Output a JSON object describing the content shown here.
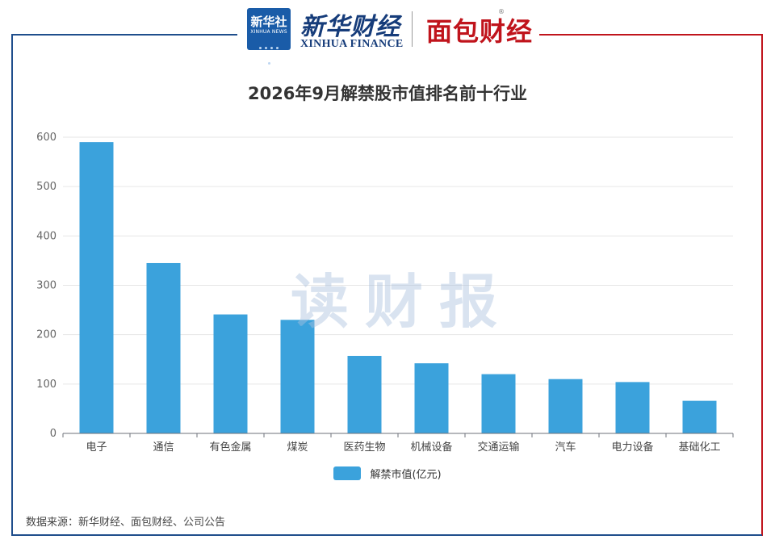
{
  "header": {
    "xinhua_badge_cn": "新华社",
    "xinhua_badge_en": "XINHUA NEWS",
    "xinhua_finance_cn": "新华财经",
    "xinhua_finance_en": "XINHUA FINANCE",
    "mianbao_logo": "面包财经",
    "registered_mark": "®"
  },
  "watermark": "读财报",
  "source_note": "数据来源：新华财经、面包财经、公司公告",
  "colors": {
    "bar": "#3ba2dc",
    "frame_blue": "#1f4e8c",
    "frame_red": "#c0141c",
    "grid": "#e6e6e6"
  },
  "chart_data": {
    "type": "bar",
    "title": "2026年9月解禁股市值排名前十行业",
    "xlabel": "",
    "ylabel": "",
    "categories": [
      "电子",
      "通信",
      "有色金属",
      "煤炭",
      "医药生物",
      "机械设备",
      "交通运输",
      "汽车",
      "电力设备",
      "基础化工"
    ],
    "series": [
      {
        "name": "解禁市值(亿元)",
        "values": [
          590,
          345,
          241,
          230,
          157,
          142,
          120,
          110,
          104,
          66
        ]
      }
    ],
    "ylim": [
      0,
      600
    ],
    "yticks": [
      0,
      100,
      200,
      300,
      400,
      500,
      600
    ],
    "grid": true,
    "legend_position": "bottom"
  }
}
